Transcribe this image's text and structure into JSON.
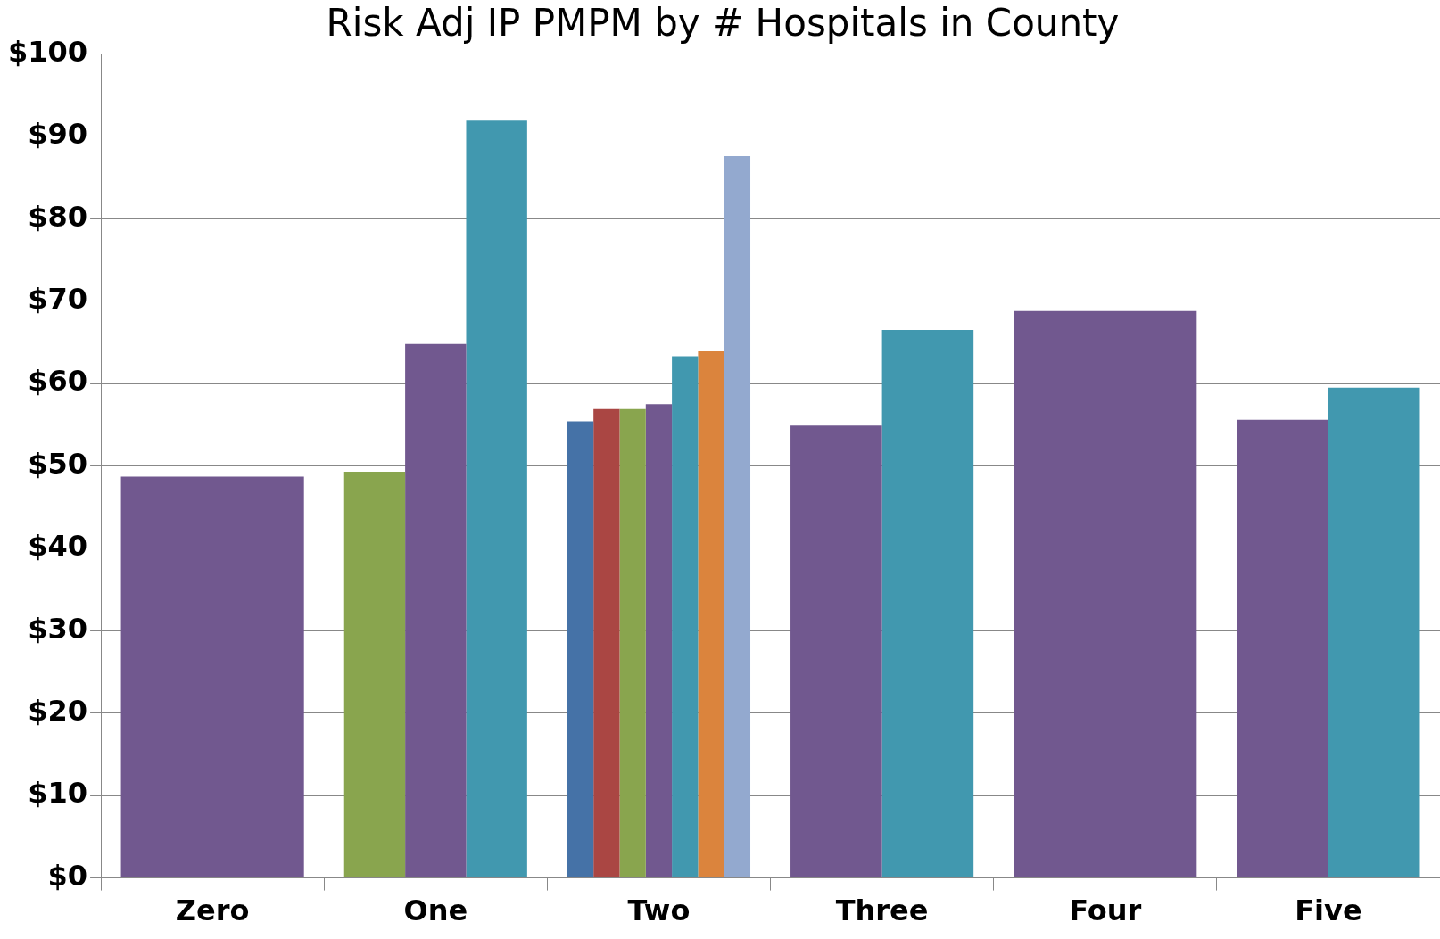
{
  "chart_data": {
    "type": "bar",
    "title": "Risk Adj IP PMPM by # Hospitals in County",
    "categories": [
      "Zero",
      "One",
      "Two",
      "Three",
      "Four",
      "Five"
    ],
    "series": [
      {
        "color": "#4572a7",
        "values": [
          null,
          null,
          55.4,
          null,
          null,
          null
        ]
      },
      {
        "color": "#aa4643",
        "values": [
          null,
          null,
          56.9,
          null,
          null,
          null
        ]
      },
      {
        "color": "#89a54e",
        "values": [
          null,
          49.3,
          56.9,
          null,
          null,
          null
        ]
      },
      {
        "color": "#71588f",
        "values": [
          48.7,
          64.8,
          57.5,
          54.9,
          68.8,
          55.6
        ]
      },
      {
        "color": "#4198af",
        "values": [
          null,
          91.9,
          63.3,
          66.5,
          null,
          59.5
        ]
      },
      {
        "color": "#db843d",
        "values": [
          null,
          null,
          63.9,
          null,
          null,
          null
        ]
      },
      {
        "color": "#93a9cf",
        "values": [
          null,
          null,
          87.6,
          null,
          null,
          null
        ]
      }
    ],
    "ylim": [
      0,
      100
    ],
    "yticks": [
      {
        "value": 0,
        "label": "$0"
      },
      {
        "value": 10,
        "label": "$10"
      },
      {
        "value": 20,
        "label": "$20"
      },
      {
        "value": 30,
        "label": "$30"
      },
      {
        "value": 40,
        "label": "$40"
      },
      {
        "value": 50,
        "label": "$50"
      },
      {
        "value": 60,
        "label": "$60"
      },
      {
        "value": 70,
        "label": "$70"
      },
      {
        "value": 80,
        "label": "$80"
      },
      {
        "value": 90,
        "label": "$90"
      },
      {
        "value": 100,
        "label": "$100"
      }
    ],
    "grid": "y"
  }
}
